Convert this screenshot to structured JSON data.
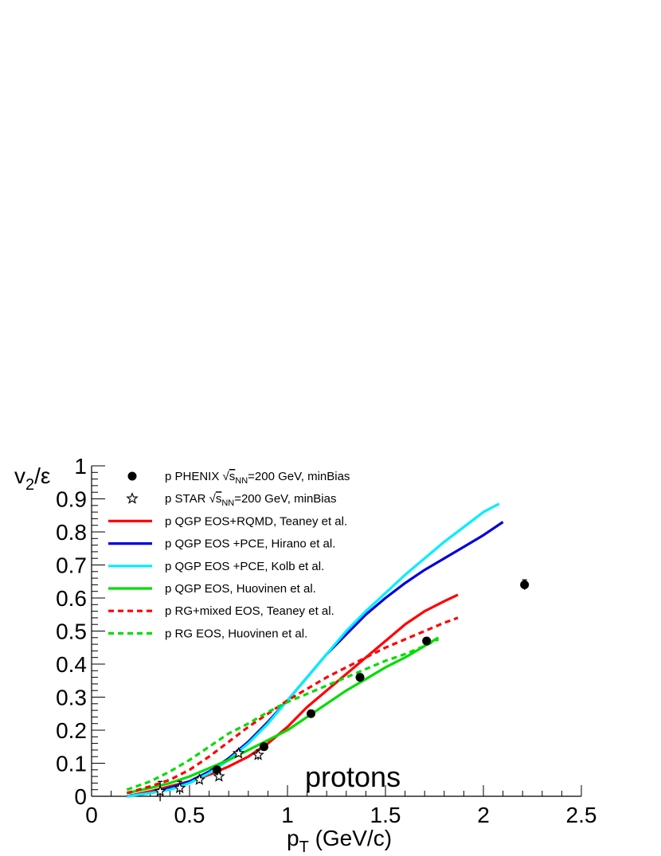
{
  "chart_data": {
    "type": "line",
    "xlabel": "p",
    "xlabel_sub": "T",
    "xlabel_unit": "(GeV/c)",
    "ylabel": "v",
    "ylabel_sub": "2",
    "ylabel_rest": "/ε",
    "xlim": [
      0,
      2.5
    ],
    "ylim": [
      0,
      1
    ],
    "xticks": [
      0,
      0.5,
      1,
      1.5,
      2,
      2.5
    ],
    "xtick_labels": [
      "0",
      "0.5",
      "1",
      "1.5",
      "2",
      "2.5"
    ],
    "yticks": [
      0,
      0.1,
      0.2,
      0.3,
      0.4,
      0.5,
      0.6,
      0.7,
      0.8,
      0.9,
      1
    ],
    "ytick_labels": [
      "0",
      "0.1",
      "0.2",
      "0.3",
      "0.4",
      "0.5",
      "0.6",
      "0.7",
      "0.8",
      "0.9",
      "1"
    ],
    "annotation": "protons",
    "grid": false,
    "legend_position": "top-left",
    "points": [
      {
        "name": "p PHENIX √s_NN=200 GeV, minBias",
        "legend_pre": "p PHENIX ",
        "legend_sub": "NN",
        "legend_post": "=200 GeV, minBias",
        "marker": "filled-circle",
        "color": "#000000",
        "x": [
          0.64,
          0.88,
          1.12,
          1.37,
          1.71,
          2.21
        ],
        "y": [
          0.08,
          0.15,
          0.25,
          0.36,
          0.47,
          0.64
        ],
        "err": [
          0.01,
          0.01,
          0.01,
          0.01,
          0.01,
          0.015
        ]
      },
      {
        "name": "p STAR √s_NN=200 GeV, minBias",
        "legend_pre": "p STAR ",
        "legend_sub": "NN",
        "legend_post": "=200 GeV, minBias",
        "marker": "open-star",
        "color": "#000000",
        "x": [
          0.35,
          0.45,
          0.55,
          0.65,
          0.75,
          0.85
        ],
        "y": [
          0.015,
          0.025,
          0.05,
          0.06,
          0.13,
          0.125
        ],
        "err": [
          0.03,
          0.02,
          0.01,
          0.01,
          0.01,
          0.015
        ]
      }
    ],
    "series": [
      {
        "name": "p  QGP EOS+RQMD, Teaney et al.",
        "color": "#ff0000",
        "dash": "solid",
        "x": [
          0.18,
          0.3,
          0.4,
          0.5,
          0.6,
          0.7,
          0.8,
          0.9,
          1.0,
          1.1,
          1.2,
          1.3,
          1.4,
          1.5,
          1.6,
          1.7,
          1.8,
          1.87
        ],
        "y": [
          0.0,
          0.015,
          0.03,
          0.045,
          0.065,
          0.09,
          0.12,
          0.16,
          0.21,
          0.27,
          0.32,
          0.37,
          0.42,
          0.47,
          0.52,
          0.56,
          0.59,
          0.61
        ]
      },
      {
        "name": "p QGP EOS +PCE, Hirano et al.",
        "color": "#0000dd",
        "dash": "solid",
        "x": [
          0.18,
          0.3,
          0.4,
          0.5,
          0.6,
          0.7,
          0.8,
          0.9,
          1.0,
          1.1,
          1.2,
          1.3,
          1.4,
          1.5,
          1.6,
          1.7,
          1.8,
          1.9,
          2.0,
          2.1
        ],
        "y": [
          0.0,
          0.01,
          0.025,
          0.045,
          0.075,
          0.115,
          0.165,
          0.225,
          0.29,
          0.36,
          0.43,
          0.49,
          0.55,
          0.6,
          0.645,
          0.685,
          0.72,
          0.755,
          0.79,
          0.83
        ]
      },
      {
        "name": "p QGP EOS +PCE, Kolb et al.",
        "color": "#00eeff",
        "dash": "solid",
        "x": [
          0.18,
          0.3,
          0.4,
          0.5,
          0.6,
          0.7,
          0.8,
          0.9,
          1.0,
          1.1,
          1.2,
          1.3,
          1.4,
          1.5,
          1.6,
          1.7,
          1.8,
          1.9,
          2.0,
          2.08
        ],
        "y": [
          0.0,
          0.01,
          0.02,
          0.04,
          0.07,
          0.11,
          0.16,
          0.22,
          0.29,
          0.36,
          0.43,
          0.5,
          0.56,
          0.615,
          0.67,
          0.72,
          0.77,
          0.815,
          0.86,
          0.885
        ]
      },
      {
        "name": "p QGP EOS, Huovinen et al.",
        "color": "#00dd00",
        "dash": "solid",
        "x": [
          0.18,
          0.3,
          0.4,
          0.5,
          0.6,
          0.7,
          0.8,
          0.9,
          1.0,
          1.1,
          1.2,
          1.3,
          1.4,
          1.5,
          1.6,
          1.7,
          1.77
        ],
        "y": [
          0.01,
          0.025,
          0.04,
          0.06,
          0.085,
          0.11,
          0.14,
          0.17,
          0.2,
          0.24,
          0.28,
          0.32,
          0.355,
          0.39,
          0.42,
          0.455,
          0.48
        ]
      },
      {
        "name": "p RG+mixed EOS, Teaney et al.",
        "color": "#ff0000",
        "dash": "dashed",
        "x": [
          0.18,
          0.3,
          0.4,
          0.5,
          0.6,
          0.7,
          0.8,
          0.9,
          1.0,
          1.1,
          1.2,
          1.3,
          1.4,
          1.5,
          1.6,
          1.7,
          1.8,
          1.87
        ],
        "y": [
          0.01,
          0.03,
          0.05,
          0.08,
          0.12,
          0.165,
          0.21,
          0.25,
          0.29,
          0.325,
          0.36,
          0.39,
          0.42,
          0.45,
          0.475,
          0.5,
          0.525,
          0.54
        ]
      },
      {
        "name": "p RG EOS, Huovinen et al.",
        "color": "#00dd00",
        "dash": "dashed",
        "x": [
          0.18,
          0.3,
          0.4,
          0.5,
          0.6,
          0.7,
          0.8,
          0.9,
          1.0,
          1.1,
          1.2,
          1.3,
          1.4,
          1.5,
          1.6,
          1.7,
          1.77
        ],
        "y": [
          0.02,
          0.045,
          0.075,
          0.11,
          0.15,
          0.19,
          0.22,
          0.255,
          0.285,
          0.31,
          0.335,
          0.36,
          0.385,
          0.41,
          0.43,
          0.455,
          0.475
        ]
      }
    ]
  }
}
